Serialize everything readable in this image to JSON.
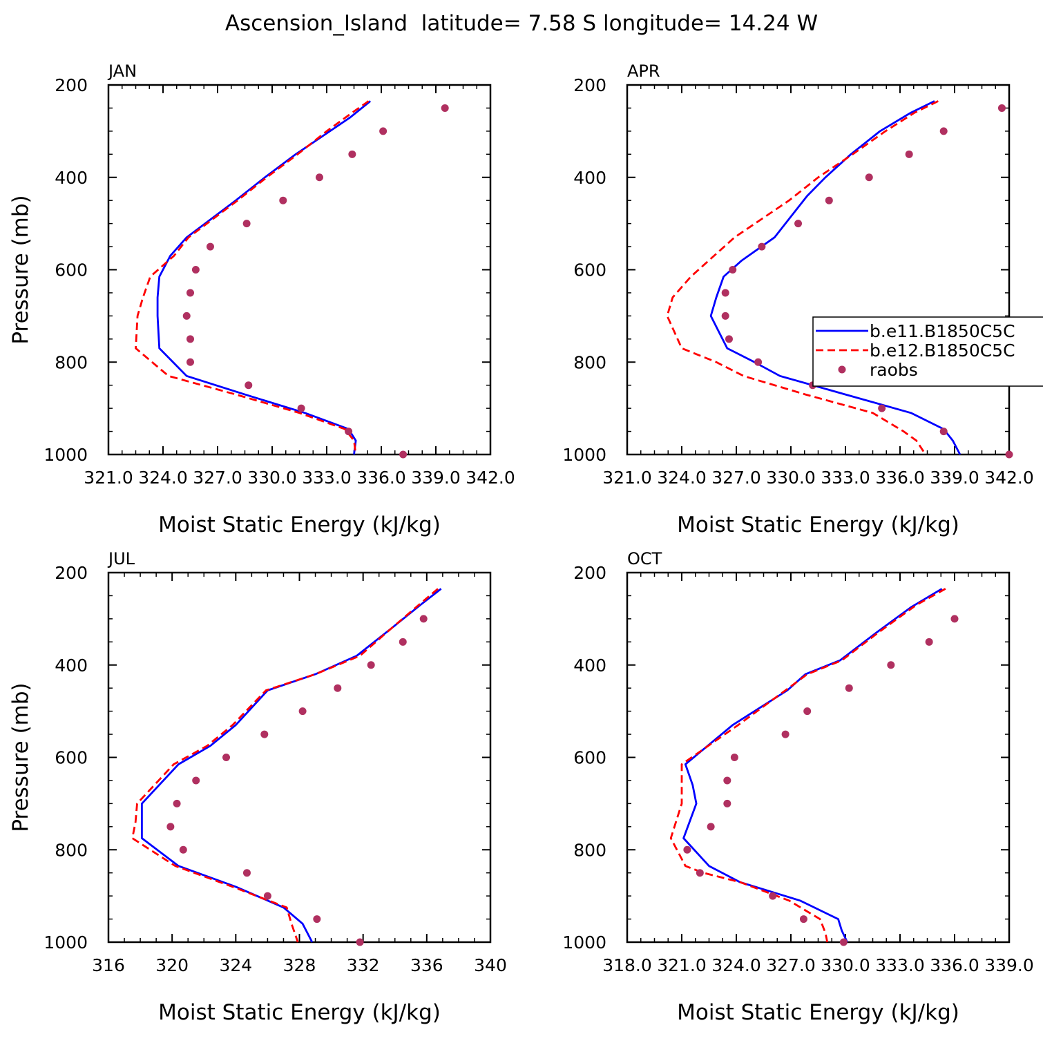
{
  "figure": {
    "title": "Ascension_Island  latitude= 7.58 S longitude= 14.24 W"
  },
  "legend": {
    "placement": "right",
    "entries": [
      {
        "label": "b.e11.B1850C5C",
        "style": "solid",
        "color": "#0000ff"
      },
      {
        "label": "b.e12.B1850C5C",
        "style": "dashed",
        "color": "#ff0000"
      },
      {
        "label": "raobs",
        "style": "dot",
        "color": "#b03060"
      }
    ]
  },
  "chart_data": [
    {
      "type": "line",
      "title": "JAN",
      "xlabel": "Moist Static Energy (kJ/kg)",
      "ylabel": "Pressure (mb)",
      "xlim": [
        321,
        342
      ],
      "ylim": [
        200,
        1000
      ],
      "y_inverted": true,
      "xtick_labels": [
        "321.0",
        "324.0",
        "327.0",
        "330.0",
        "333.0",
        "336.0",
        "339.0",
        "342.0"
      ],
      "ytick_labels": [
        "200",
        "400",
        "600",
        "800",
        "1000"
      ],
      "series": [
        {
          "name": "b.e11.B1850C5C",
          "x": [
            335.4,
            334.3,
            332.8,
            331.3,
            329.6,
            328.0,
            325.3,
            324.4,
            323.8,
            323.7,
            323.7,
            323.8,
            325.3,
            328.5,
            331.8,
            334.2,
            334.6,
            334.5
          ],
          "y": [
            235,
            270,
            310,
            350,
            400,
            450,
            530,
            570,
            615,
            660,
            700,
            770,
            830,
            870,
            910,
            945,
            970,
            1000
          ]
        },
        {
          "name": "b.e12.B1850C5C",
          "x": [
            335.3,
            334.4,
            333.0,
            331.4,
            329.7,
            328.1,
            325.4,
            324.6,
            323.3,
            322.9,
            322.6,
            322.5,
            324.3,
            328.0,
            331.5,
            334.0,
            334.5,
            334.6
          ],
          "y": [
            235,
            260,
            300,
            350,
            400,
            450,
            530,
            570,
            615,
            660,
            700,
            770,
            830,
            870,
            910,
            945,
            970,
            1000
          ]
        },
        {
          "name": "raobs",
          "x": [
            339.5,
            336.1,
            334.4,
            332.6,
            330.6,
            328.6,
            326.6,
            325.8,
            325.5,
            325.3,
            325.5,
            325.5,
            328.7,
            331.6,
            334.2,
            337.2
          ],
          "y": [
            250,
            300,
            350,
            400,
            450,
            500,
            550,
            600,
            650,
            700,
            750,
            800,
            850,
            900,
            950,
            1000
          ]
        }
      ]
    },
    {
      "type": "line",
      "title": "APR",
      "xlabel": "Moist Static Energy (kJ/kg)",
      "ylabel": "",
      "xlim": [
        321,
        342
      ],
      "ylim": [
        200,
        1000
      ],
      "y_inverted": true,
      "xtick_labels": [
        "321.0",
        "324.0",
        "327.0",
        "330.0",
        "333.0",
        "336.0",
        "339.0",
        "342.0"
      ],
      "ytick_labels": [
        "200",
        "400",
        "600",
        "800",
        "1000"
      ],
      "series": [
        {
          "name": "b.e11.B1850C5C",
          "x": [
            337.9,
            336.6,
            334.9,
            333.3,
            331.9,
            330.9,
            329.1,
            327.3,
            326.3,
            325.9,
            325.6,
            326.5,
            328.0,
            329.4,
            333.0,
            336.6,
            338.4,
            338.9,
            339.3
          ],
          "y": [
            235,
            260,
            300,
            350,
            400,
            440,
            530,
            580,
            615,
            660,
            700,
            770,
            800,
            830,
            870,
            910,
            945,
            970,
            1000
          ]
        },
        {
          "name": "b.e12.B1850C5C",
          "x": [
            338.1,
            336.8,
            335.2,
            333.4,
            331.5,
            329.9,
            326.9,
            324.5,
            323.5,
            323.2,
            324.0,
            325.9,
            327.4,
            330.8,
            334.5,
            336.2,
            336.9,
            337.4
          ],
          "y": [
            235,
            260,
            300,
            350,
            400,
            450,
            530,
            615,
            660,
            700,
            770,
            800,
            830,
            870,
            910,
            950,
            970,
            1000
          ]
        },
        {
          "name": "raobs",
          "x": [
            341.6,
            338.4,
            336.5,
            334.3,
            332.1,
            330.4,
            328.4,
            326.8,
            326.4,
            326.4,
            326.6,
            328.2,
            331.2,
            335.0,
            338.4,
            342.0
          ],
          "y": [
            250,
            300,
            350,
            400,
            450,
            500,
            550,
            600,
            650,
            700,
            750,
            800,
            850,
            900,
            950,
            1000
          ]
        }
      ]
    },
    {
      "type": "line",
      "title": "JUL",
      "xlabel": "Moist Static Energy (kJ/kg)",
      "ylabel": "Pressure (mb)",
      "xlim": [
        316,
        340
      ],
      "ylim": [
        200,
        1000
      ],
      "y_inverted": true,
      "xtick_labels": [
        "316",
        "320",
        "324",
        "328",
        "332",
        "336",
        "340"
      ],
      "ytick_labels": [
        "200",
        "400",
        "600",
        "800",
        "1000"
      ],
      "series": [
        {
          "name": "b.e11.B1850C5C",
          "x": [
            336.9,
            335.6,
            333.8,
            331.6,
            329.0,
            326.0,
            324.0,
            322.4,
            320.4,
            318.1,
            318.1,
            318.1,
            320.4,
            324.0,
            327.0,
            328.2,
            328.5,
            328.8
          ],
          "y": [
            235,
            270,
            320,
            380,
            420,
            455,
            530,
            575,
            615,
            700,
            740,
            775,
            835,
            880,
            925,
            960,
            980,
            1000
          ]
        },
        {
          "name": "b.e12.B1850C5C",
          "x": [
            336.7,
            335.5,
            333.8,
            331.8,
            329.0,
            325.9,
            323.8,
            322.2,
            320.1,
            317.8,
            317.7,
            317.5,
            320.2,
            323.8,
            327.2,
            327.5,
            327.7,
            327.9
          ],
          "y": [
            235,
            270,
            320,
            380,
            420,
            455,
            530,
            575,
            615,
            700,
            740,
            775,
            835,
            880,
            925,
            960,
            980,
            1000
          ]
        },
        {
          "name": "raobs",
          "x": [
            335.8,
            334.5,
            332.5,
            330.4,
            328.2,
            325.8,
            323.4,
            321.5,
            320.3,
            319.9,
            320.7,
            324.7,
            326.0,
            329.1,
            331.8
          ],
          "y": [
            300,
            350,
            400,
            450,
            500,
            550,
            600,
            650,
            700,
            750,
            800,
            850,
            900,
            950,
            1000
          ]
        }
      ]
    },
    {
      "type": "line",
      "title": "OCT",
      "xlabel": "Moist Static Energy (kJ/kg)",
      "ylabel": "",
      "xlim": [
        318,
        339
      ],
      "ylim": [
        200,
        1000
      ],
      "y_inverted": true,
      "xtick_labels": [
        "318.0",
        "321.0",
        "324.0",
        "327.0",
        "330.0",
        "333.0",
        "336.0",
        "339.0"
      ],
      "ytick_labels": [
        "200",
        "400",
        "600",
        "800",
        "1000"
      ],
      "series": [
        {
          "name": "b.e11.B1850C5C",
          "x": [
            335.3,
            333.6,
            331.7,
            329.7,
            327.8,
            326.8,
            323.8,
            321.2,
            321.6,
            321.8,
            321.1,
            322.5,
            324.2,
            327.5,
            329.6,
            329.8,
            330.1
          ],
          "y": [
            235,
            275,
            330,
            390,
            420,
            455,
            530,
            615,
            660,
            700,
            775,
            835,
            870,
            910,
            950,
            975,
            1000
          ]
        },
        {
          "name": "b.e12.B1850C5C",
          "x": [
            335.5,
            333.9,
            331.8,
            329.8,
            327.9,
            326.7,
            324.1,
            321.0,
            321.0,
            321.0,
            320.4,
            321.2,
            322.2,
            324.2,
            326.9,
            328.6,
            328.9,
            329.0
          ],
          "y": [
            235,
            270,
            330,
            390,
            420,
            455,
            530,
            615,
            660,
            700,
            775,
            835,
            850,
            870,
            910,
            950,
            980,
            1000
          ]
        },
        {
          "name": "raobs",
          "x": [
            336.0,
            334.6,
            332.5,
            330.2,
            327.9,
            326.7,
            323.9,
            323.5,
            323.5,
            322.6,
            321.3,
            322.0,
            326.0,
            327.7,
            329.9
          ],
          "y": [
            300,
            350,
            400,
            450,
            500,
            550,
            600,
            650,
            700,
            750,
            800,
            850,
            900,
            950,
            1000
          ]
        }
      ]
    }
  ]
}
